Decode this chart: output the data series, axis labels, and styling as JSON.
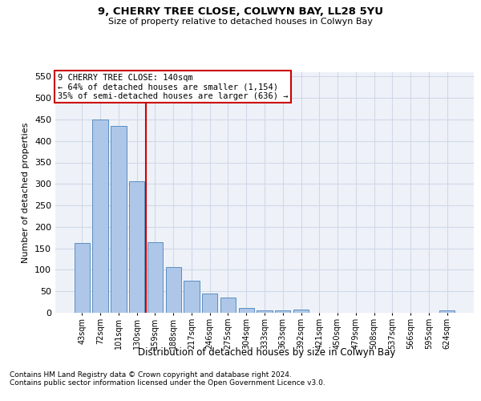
{
  "title1": "9, CHERRY TREE CLOSE, COLWYN BAY, LL28 5YU",
  "title2": "Size of property relative to detached houses in Colwyn Bay",
  "xlabel": "Distribution of detached houses by size in Colwyn Bay",
  "ylabel": "Number of detached properties",
  "footnote1": "Contains HM Land Registry data © Crown copyright and database right 2024.",
  "footnote2": "Contains public sector information licensed under the Open Government Licence v3.0.",
  "bar_labels": [
    "43sqm",
    "72sqm",
    "101sqm",
    "130sqm",
    "159sqm",
    "188sqm",
    "217sqm",
    "246sqm",
    "275sqm",
    "304sqm",
    "333sqm",
    "363sqm",
    "392sqm",
    "421sqm",
    "450sqm",
    "479sqm",
    "508sqm",
    "537sqm",
    "566sqm",
    "595sqm",
    "624sqm"
  ],
  "bar_values": [
    163,
    450,
    435,
    307,
    165,
    107,
    75,
    44,
    35,
    11,
    6,
    6,
    7,
    0,
    0,
    0,
    0,
    0,
    0,
    0,
    5
  ],
  "bar_color": "#aec6e8",
  "bar_edge_color": "#5a8fc2",
  "grid_color": "#d0d8e8",
  "bg_color": "#eef2f8",
  "vline_color": "#cc0000",
  "annotation_text": "9 CHERRY TREE CLOSE: 140sqm\n← 64% of detached houses are smaller (1,154)\n35% of semi-detached houses are larger (636) →",
  "annotation_box_color": "#cc0000",
  "ylim": [
    0,
    560
  ],
  "yticks": [
    0,
    50,
    100,
    150,
    200,
    250,
    300,
    350,
    400,
    450,
    500,
    550
  ]
}
